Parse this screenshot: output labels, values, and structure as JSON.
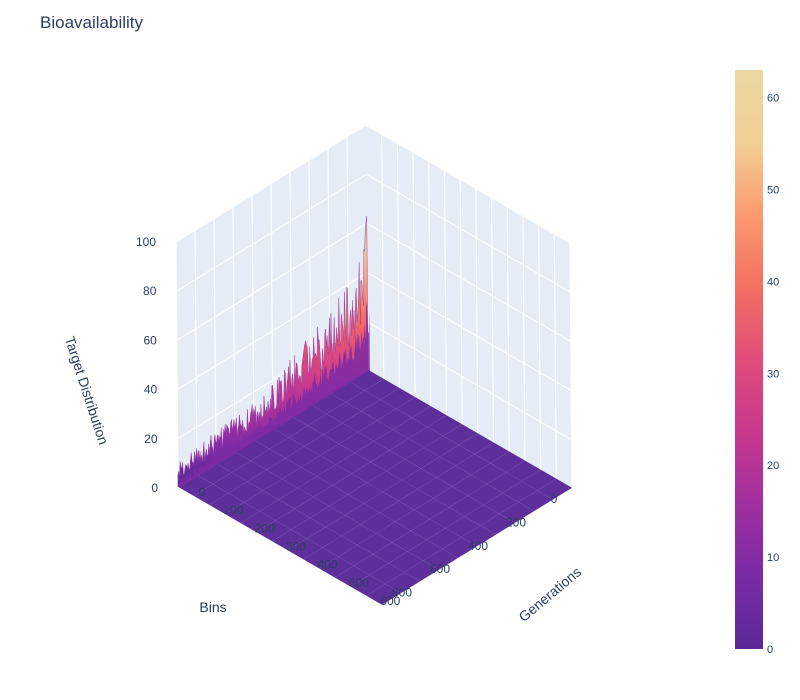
{
  "chart_data": {
    "type": "surface",
    "title": "Bioavailability",
    "x_axis": {
      "label": "Bins",
      "range": [
        0,
        1000
      ],
      "ticks": [
        0,
        200,
        400,
        600,
        800
      ]
    },
    "y_axis": {
      "label": "Generations",
      "range": [
        0,
        650
      ],
      "ticks": [
        0,
        100,
        200,
        300,
        400,
        500,
        600
      ]
    },
    "z_axis": {
      "label": "Target Distribution",
      "range": [
        0,
        100
      ],
      "ticks": [
        0,
        20,
        40,
        60,
        80,
        100
      ]
    },
    "colorbar": {
      "range": [
        0,
        63
      ],
      "ticks": [
        0,
        10,
        20,
        30,
        40,
        50,
        60
      ]
    },
    "colorscale": [
      "#5a2995",
      "#7a2aa6",
      "#a02fa0",
      "#c8388d",
      "#e14c7a",
      "#f37060",
      "#fb9a70",
      "#f2cf94",
      "#ecd7a2"
    ],
    "grid": true,
    "surface_summary": {
      "peak_value": 63,
      "peak_location": {
        "bins": 0,
        "generations": 0
      },
      "edge_profile_generation_0": [
        {
          "bins": 0,
          "z": 63
        },
        {
          "bins": 50,
          "z": 32
        },
        {
          "bins": 100,
          "z": 30
        },
        {
          "bins": 200,
          "z": 25
        },
        {
          "bins": 300,
          "z": 22
        },
        {
          "bins": 400,
          "z": 18
        },
        {
          "bins": 500,
          "z": 15
        },
        {
          "bins": 600,
          "z": 12
        },
        {
          "bins": 700,
          "z": 11
        },
        {
          "bins": 800,
          "z": 10
        },
        {
          "bins": 900,
          "z": 9
        },
        {
          "bins": 1000,
          "z": 8
        }
      ],
      "background_level": 0.5
    }
  }
}
